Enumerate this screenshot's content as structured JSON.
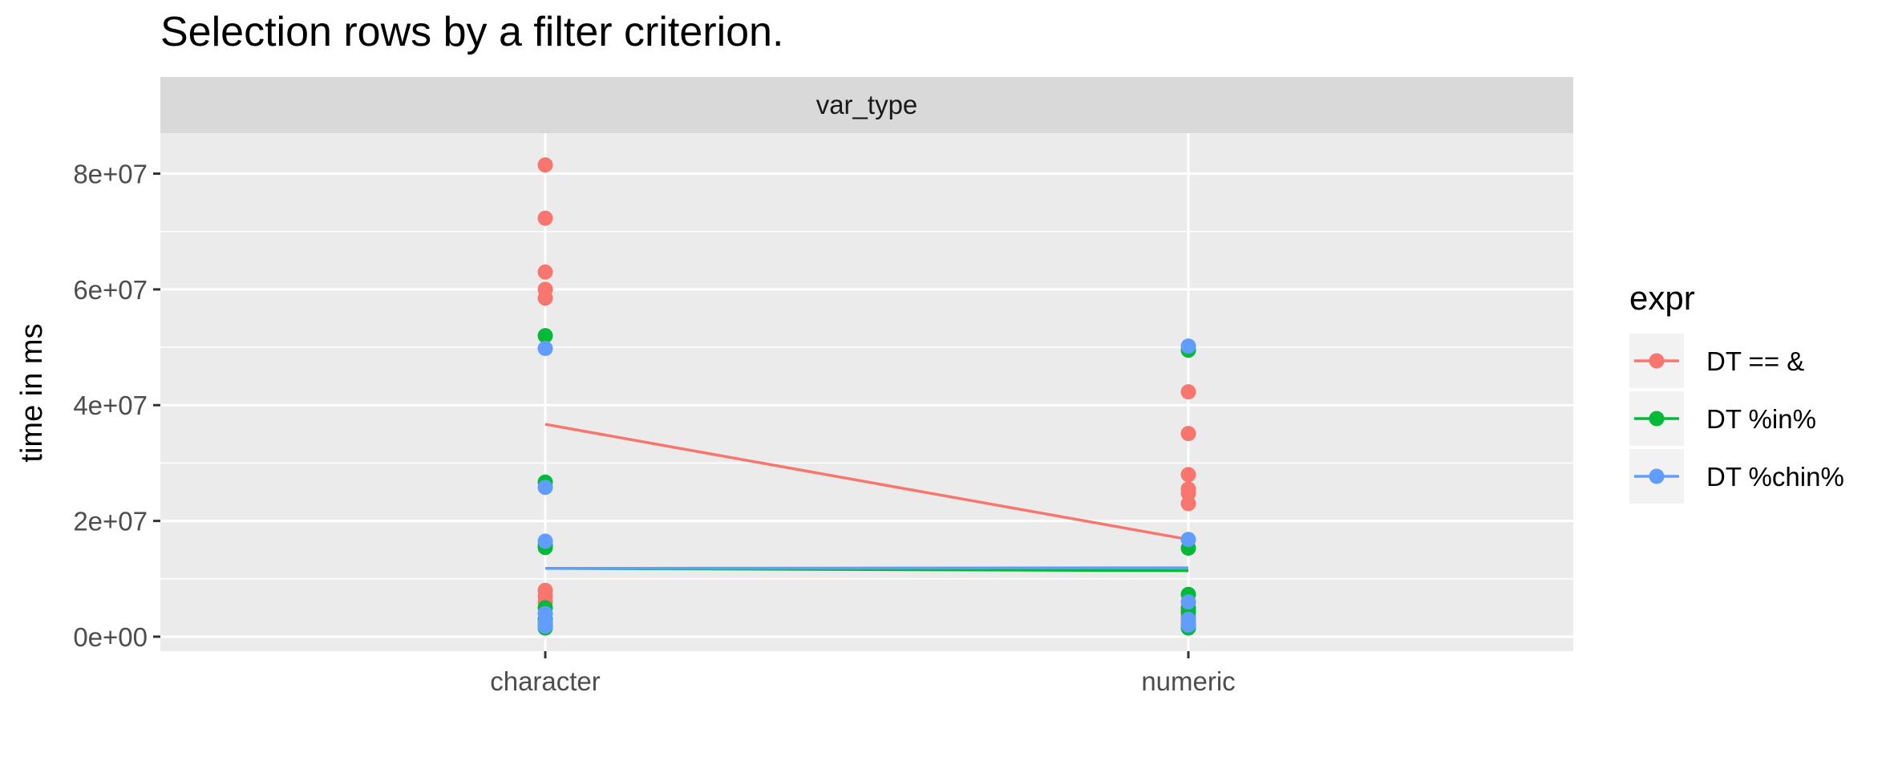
{
  "chart_data": {
    "type": "scatter",
    "title": "Selection rows by a filter criterion.",
    "facet_label": "var_type",
    "xlabel": "",
    "ylabel": "time in ms",
    "categories": [
      "character",
      "numeric"
    ],
    "ylim": [
      -2500000,
      87000000
    ],
    "yticks": [
      {
        "value": 0,
        "label": "0e+00"
      },
      {
        "value": 20000000,
        "label": "2e+07"
      },
      {
        "value": 40000000,
        "label": "4e+07"
      },
      {
        "value": 60000000,
        "label": "6e+07"
      },
      {
        "value": 80000000,
        "label": "8e+07"
      }
    ],
    "grid": true,
    "legend": {
      "title": "expr",
      "position": "right"
    },
    "series": [
      {
        "name": "DT == &",
        "color": "#F8766D",
        "points": {
          "character": [
            81500000,
            72300000,
            63000000,
            60000000,
            58500000,
            8000000,
            7000000,
            6000000,
            5000000
          ],
          "numeric": [
            42300000,
            35100000,
            28000000,
            25500000,
            24800000,
            23000000,
            4500000,
            3500000,
            2500000
          ]
        },
        "line": [
          36700000,
          16800000
        ]
      },
      {
        "name": "DT %in%",
        "color": "#00BA38",
        "points": {
          "character": [
            52000000,
            26700000,
            15800000,
            15400000,
            5000000,
            3000000,
            2000000,
            1500000
          ],
          "numeric": [
            49500000,
            15300000,
            7300000,
            5000000,
            4200000,
            2000000,
            1500000
          ]
        },
        "line": [
          11800000,
          11400000
        ]
      },
      {
        "name": "DT %chin%",
        "color": "#619CFF",
        "points": {
          "character": [
            49800000,
            25800000,
            16500000,
            4000000,
            2500000,
            1800000
          ],
          "numeric": [
            50200000,
            16800000,
            6000000,
            3000000,
            2000000
          ]
        },
        "line": [
          11800000,
          11900000
        ]
      }
    ]
  }
}
